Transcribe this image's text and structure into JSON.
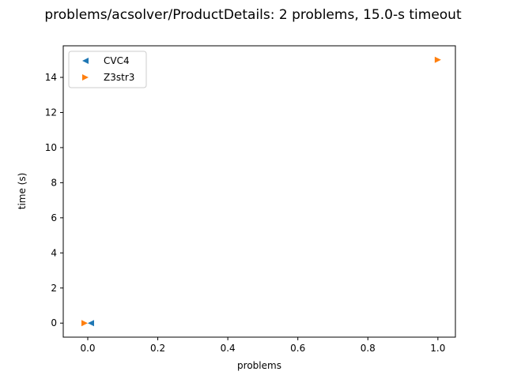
{
  "chart_data": {
    "type": "scatter",
    "title": "problems/acsolver/ProductDetails: 2 problems, 15.0-s timeout",
    "xlabel": "problems",
    "ylabel": "time (s)",
    "xlim": [
      -0.07,
      1.05
    ],
    "ylim": [
      -0.8,
      15.8
    ],
    "xticks": [
      "0.0",
      "0.2",
      "0.4",
      "0.6",
      "0.8",
      "1.0"
    ],
    "yticks": [
      "0",
      "2",
      "4",
      "6",
      "8",
      "10",
      "12",
      "14"
    ],
    "grid": false,
    "legend_position": "top-left",
    "series": [
      {
        "name": "CVC4",
        "color": "#1f77b4",
        "marker": "triangle-left",
        "points": [
          {
            "x": 0.0,
            "y": 0.0
          }
        ]
      },
      {
        "name": "Z3str3",
        "color": "#ff7f0e",
        "marker": "triangle-right",
        "points": [
          {
            "x": 0.0,
            "y": 0.0
          },
          {
            "x": 1.0,
            "y": 15.0
          }
        ]
      }
    ]
  }
}
